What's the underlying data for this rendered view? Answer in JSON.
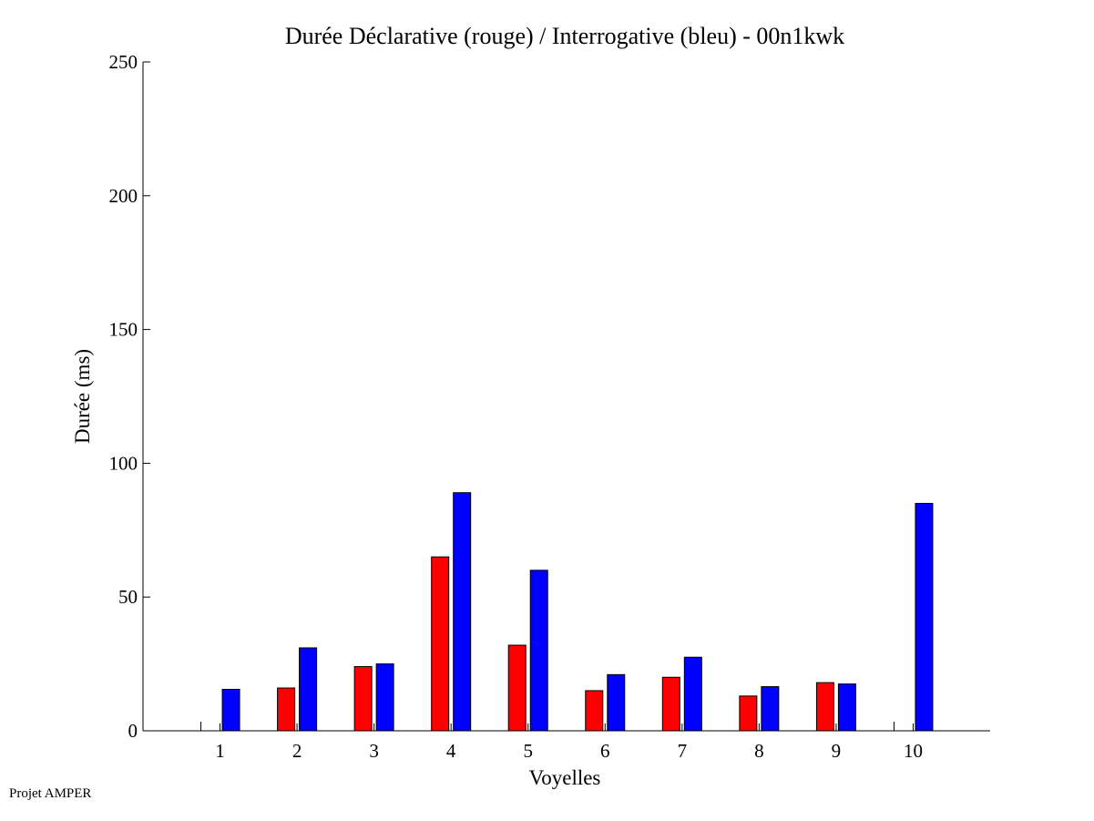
{
  "chart_data": {
    "type": "bar",
    "title": "Durée Déclarative (rouge) / Interrogative (bleu) - 00n1kwk",
    "xlabel": "Voyelles",
    "ylabel": "Durée (ms)",
    "ylim": [
      0,
      250
    ],
    "xlim": [
      0,
      11
    ],
    "yticks": [
      0,
      50,
      100,
      150,
      200,
      250
    ],
    "categories": [
      "1",
      "2",
      "3",
      "4",
      "5",
      "6",
      "7",
      "8",
      "9",
      "10"
    ],
    "series": [
      {
        "color": "#ff0000",
        "values": [
          0,
          16,
          24,
          65,
          32,
          15,
          20,
          13,
          18,
          0
        ]
      },
      {
        "color": "#0000ff",
        "values": [
          15.5,
          31,
          25,
          89,
          60,
          21,
          27.5,
          16.5,
          17.5,
          85
        ]
      }
    ],
    "grid": false,
    "legend": "none"
  },
  "footer": {
    "text": "Projet AMPER"
  }
}
